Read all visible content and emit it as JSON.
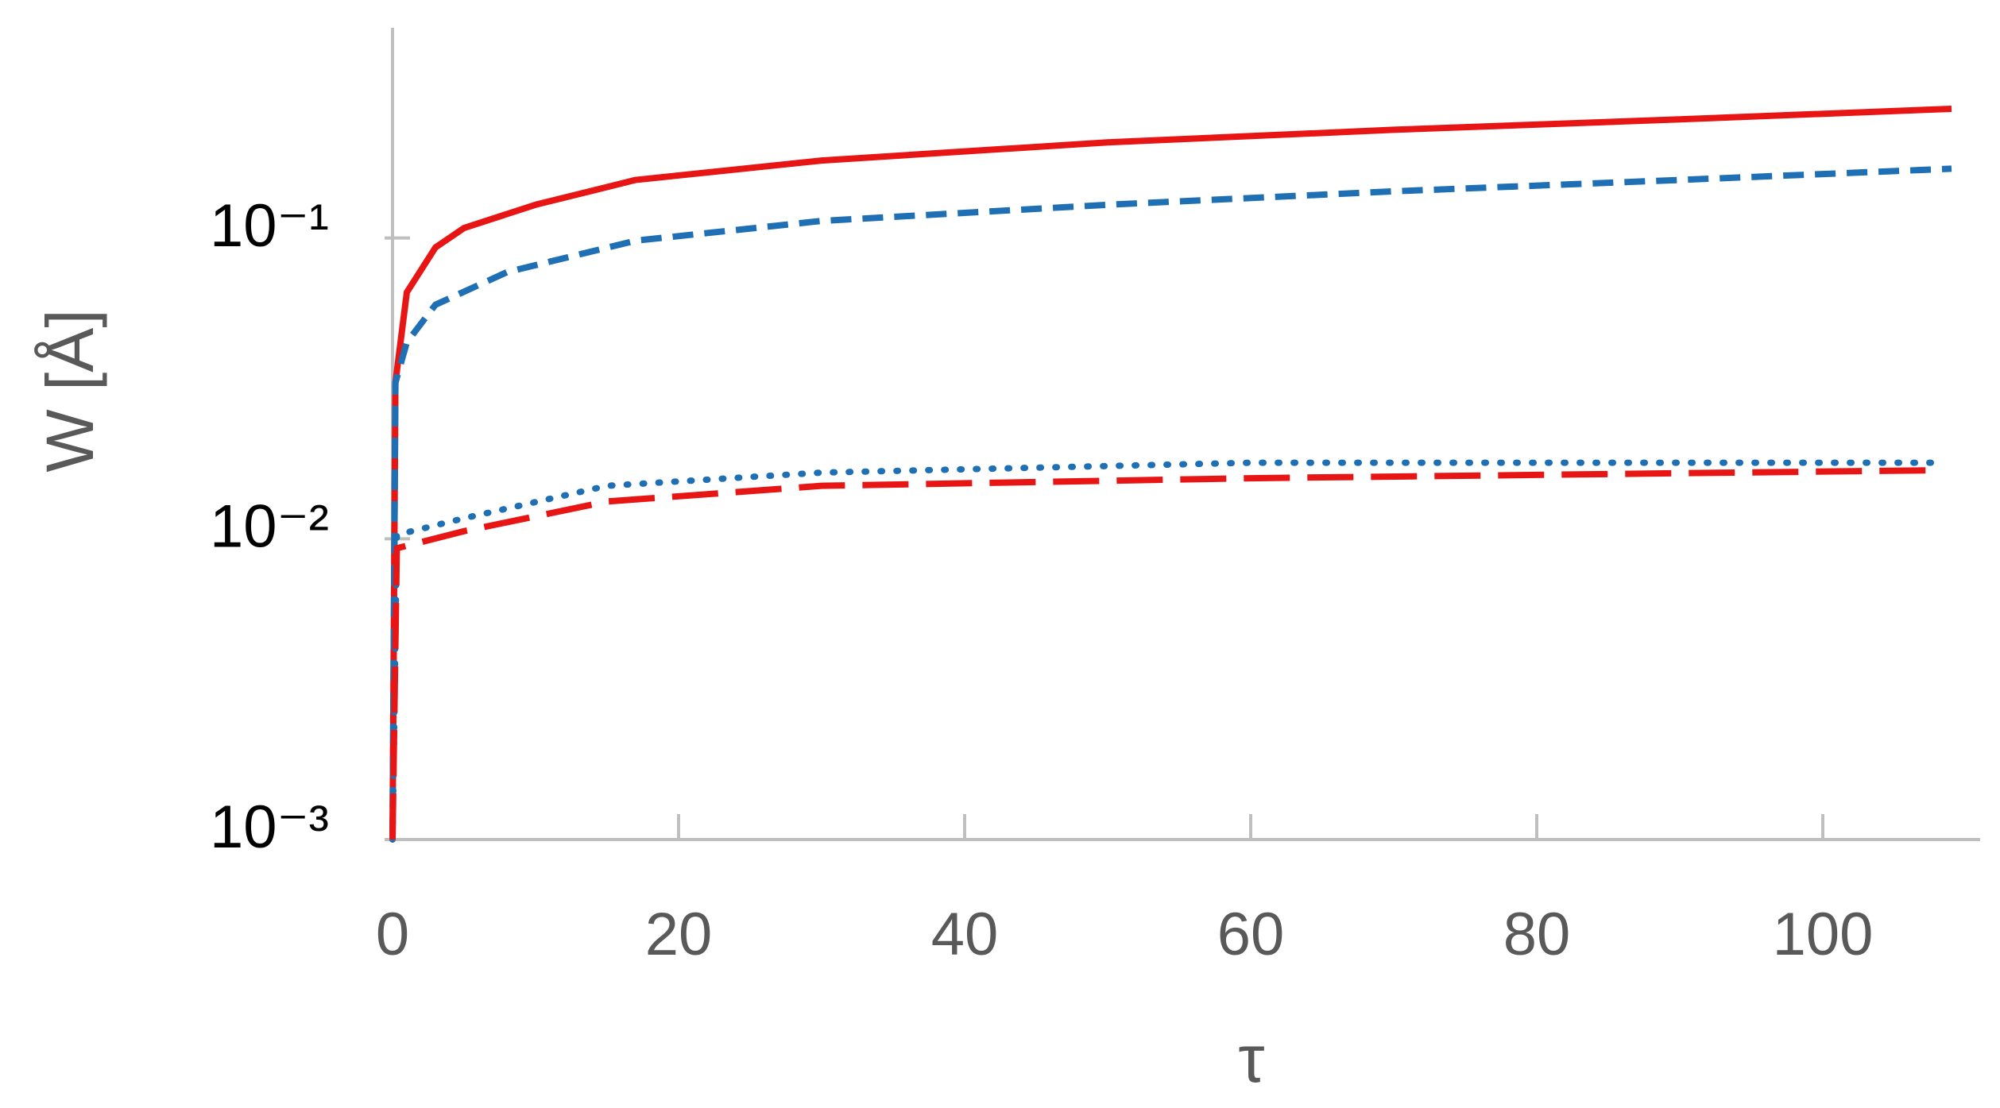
{
  "chart_data": {
    "type": "line",
    "xlabel": "τ",
    "ylabel": "W [Å]",
    "xlim": [
      0,
      111
    ],
    "xticks": [
      0,
      20,
      40,
      60,
      80,
      100
    ],
    "ylim": [
      0.001,
      0.5
    ],
    "ylog": true,
    "yticks": [
      {
        "value": 0.001,
        "label": "10⁻³"
      },
      {
        "value": 0.01,
        "label": "10⁻²"
      },
      {
        "value": 0.1,
        "label": "10⁻¹"
      }
    ],
    "series": [
      {
        "color": "#e81515",
        "style": "solid",
        "x": [
          0,
          0.2,
          1,
          3,
          5,
          10,
          17,
          30,
          50,
          70,
          90,
          109
        ],
        "values": [
          0.001,
          0.033,
          0.066,
          0.093,
          0.108,
          0.129,
          0.156,
          0.181,
          0.208,
          0.229,
          0.248,
          0.269
        ]
      },
      {
        "color": "#1f6fb4",
        "style": "dashed",
        "x": [
          0,
          0.2,
          1,
          3,
          8,
          17,
          30,
          50,
          70,
          90,
          109
        ],
        "values": [
          0.001,
          0.033,
          0.045,
          0.06,
          0.077,
          0.098,
          0.114,
          0.129,
          0.143,
          0.156,
          0.17
        ]
      },
      {
        "color": "#1f6fb4",
        "style": "dotted",
        "x": [
          0,
          0.3,
          5,
          15,
          30,
          60,
          108
        ],
        "values": [
          0.001,
          0.0103,
          0.0117,
          0.015,
          0.0166,
          0.0179,
          0.0179
        ]
      },
      {
        "color": "#e81515",
        "style": "longdash",
        "x": [
          0,
          0.3,
          5,
          15,
          30,
          60,
          108
        ],
        "values": [
          0.001,
          0.0093,
          0.0106,
          0.0133,
          0.015,
          0.0159,
          0.0169
        ]
      }
    ]
  }
}
